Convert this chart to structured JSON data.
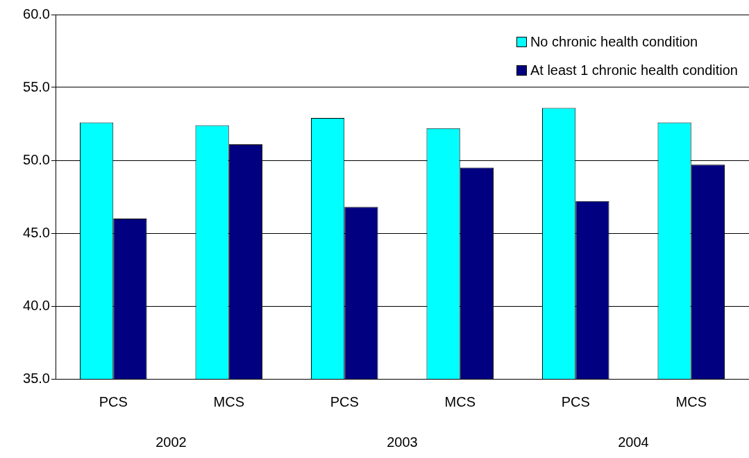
{
  "chart_data": {
    "type": "bar",
    "categories": [
      "PCS",
      "MCS",
      "PCS",
      "MCS",
      "PCS",
      "MCS"
    ],
    "series": [
      {
        "name": "No chronic health condition",
        "color": "#00ffff",
        "values": [
          52.6,
          52.4,
          52.9,
          52.2,
          53.6,
          52.6
        ]
      },
      {
        "name": "At least 1 chronic health condition",
        "color": "#000080",
        "values": [
          46.0,
          51.1,
          46.8,
          49.5,
          47.2,
          49.7
        ]
      }
    ],
    "ylim": [
      35,
      60
    ],
    "yticks": [
      {
        "value": 35,
        "label": "35.0"
      },
      {
        "value": 40,
        "label": "40.0"
      },
      {
        "value": 45,
        "label": "45.0"
      },
      {
        "value": 50,
        "label": "50.0"
      },
      {
        "value": 55,
        "label": "55.0"
      },
      {
        "value": 60,
        "label": "60.0"
      }
    ],
    "grid": "y",
    "legend": "top right",
    "annotations": [
      "2002",
      "2003",
      "2004"
    ]
  }
}
